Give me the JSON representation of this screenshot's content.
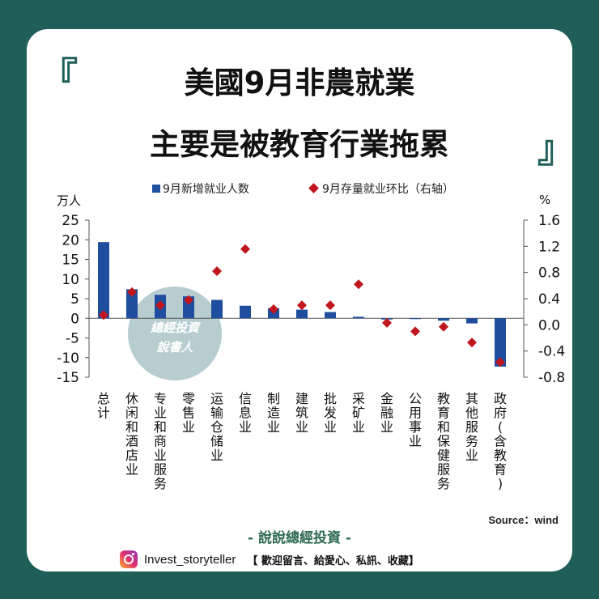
{
  "page": {
    "bracket_open": "『",
    "bracket_close": "』",
    "title_line1": "美國9月非農就業",
    "title_line2": "主要是被教育行業拖累",
    "source": "Source：wind",
    "brand": "- 說說總經投資 -",
    "footer_handle": "Invest_storyteller",
    "footer_slogan": "【 歡迎留言、給愛心、私訊、收藏】",
    "watermark_line1": "總經投資",
    "watermark_line2": "說書人"
  },
  "colors": {
    "background": "#1f5f58",
    "bar": "#1f4e9e",
    "marker": "#c0161d",
    "watermark": "#9fbcc0"
  },
  "chart_data": {
    "type": "bar",
    "legend": [
      "9月新增就业人数",
      "9月存量就业环比（右轴）"
    ],
    "legend_position": "top",
    "ylabel_left": "万人",
    "ylabel_right": "%",
    "ylim_left": [
      -15,
      25
    ],
    "ylim_right": [
      -0.8,
      1.6
    ],
    "yticks_left": [
      25,
      20,
      15,
      10,
      5,
      0,
      -5,
      -10,
      -15
    ],
    "yticks_right": [
      1.6,
      1.2,
      0.8,
      0.4,
      0.0,
      -0.4,
      -0.8
    ],
    "yticks_right_labels": [
      "1.6",
      "1.2",
      "0.8",
      "0.4",
      "0.0",
      "-0.4",
      "-0.8"
    ],
    "grid": false,
    "categories": [
      "总计",
      "休闲和酒店业",
      "专业和商业服务",
      "零售业",
      "运输仓储业",
      "信息业",
      "制造业",
      "建筑业",
      "批发业",
      "采矿业",
      "金融业",
      "公用事业",
      "教育和保健服务",
      "其他服务业",
      "政府(含教育)"
    ],
    "series": [
      {
        "name": "9月新增就业人数",
        "axis": "left",
        "kind": "bar",
        "values": [
          19.4,
          7.4,
          6.0,
          5.6,
          4.7,
          3.2,
          2.6,
          2.2,
          1.6,
          0.4,
          -0.3,
          -0.1,
          -0.6,
          -1.3,
          -12.3
        ]
      },
      {
        "name": "9月存量就业环比（右轴）",
        "axis": "right",
        "kind": "marker",
        "values": [
          0.15,
          0.5,
          0.3,
          0.38,
          0.82,
          1.16,
          0.24,
          0.3,
          0.3,
          0.62,
          0.03,
          -0.1,
          -0.03,
          -0.27,
          -0.57
        ]
      }
    ]
  }
}
